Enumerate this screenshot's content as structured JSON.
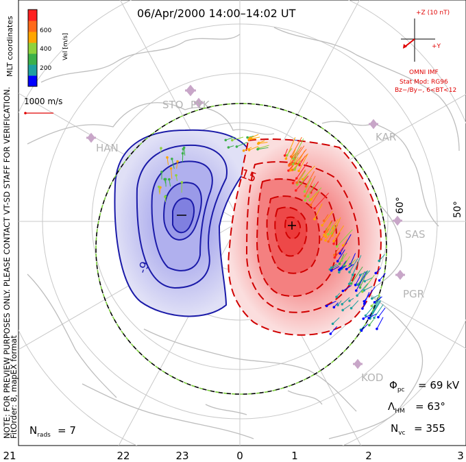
{
  "title": "06/Apr/2000  14:00–14:02  UT",
  "coords_label": "MLT coordinates",
  "colorbar": {
    "label": "Vel [m/s]",
    "ticks": [
      "600",
      "400",
      "200"
    ],
    "colors": [
      "#0000ff",
      "#1fa0a0",
      "#3cb04a",
      "#8fd23c",
      "#ffa500",
      "#ff6a1a",
      "#ff2020"
    ]
  },
  "speed_scale": "1000 m/s",
  "imf": {
    "z_label": "+Z (10 nT)",
    "y_label": "+Y",
    "source": "OMNI IMF",
    "model": "Stat Mod: RG96",
    "condition": "Bz−/By−, 6<BT<12",
    "color": "#e00000"
  },
  "notice": "NOTE: FOR PREVIEW PURPOSES ONLY. PLEASE CONTACT VT-SD STAFF FOR VERIFICATION.",
  "fit_order": "FitOrder: 8, mapEX format",
  "stations": [
    "STO",
    "PYK",
    "HAN",
    "KAR",
    "SAS",
    "PGR",
    "KOD"
  ],
  "lat_labels": [
    "60°",
    "50°"
  ],
  "contour_labels": [
    "-9",
    "15"
  ],
  "stats": {
    "phi_pc": "69 kV",
    "lambda_hm": "63°",
    "n_vc": "355",
    "n_rads": "7"
  },
  "mlt_ticks": [
    "21",
    "22",
    "23",
    "0",
    "1",
    "2",
    "3"
  ]
}
